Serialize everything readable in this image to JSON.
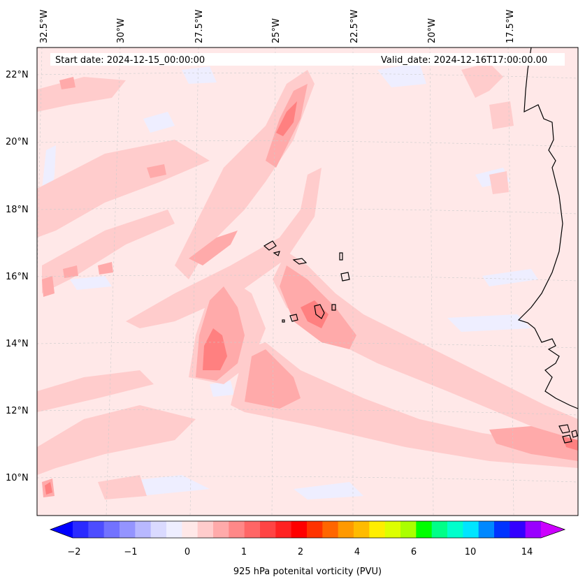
{
  "header": {
    "start_date": "Start date: 2024-12-15_00:00:00",
    "valid_date": "Valid_date: 2024-12-16T17:00:00.00"
  },
  "map": {
    "region": "Cape Verde / West Africa Atlantic",
    "gridlines": true,
    "longitude_labels": [
      "32.5°W",
      "30°W",
      "27.5°W",
      "25°W",
      "22.5°W",
      "20°W",
      "17.5°W"
    ],
    "latitude_labels": [
      "22°N",
      "20°N",
      "18°N",
      "16°N",
      "14°N",
      "12°N",
      "10°N"
    ],
    "field": "925 hPa potential vorticity",
    "colors": {
      "background_field": "#ffe8e8",
      "light_red": "#ffcccc",
      "mid_red": "#ffaaaa",
      "strong_red": "#ff8080",
      "light_blue": "#eeeeff",
      "coastline": "#000000"
    }
  },
  "colorbar": {
    "label": "925 hPa potenital vorticity (PVU)",
    "tick_labels": [
      "−2",
      "−1",
      "0",
      "1",
      "2",
      "4",
      "6",
      "10",
      "14"
    ],
    "colors": [
      "#0000ff",
      "#2a2aff",
      "#4d4dff",
      "#7272ff",
      "#9494ff",
      "#b8b8ff",
      "#dadaff",
      "#eeeeff",
      "#ffe8e8",
      "#ffcccc",
      "#ffaaaa",
      "#ff8888",
      "#ff6666",
      "#ff4444",
      "#ff2222",
      "#ff0000",
      "#ff3300",
      "#ff6600",
      "#ff9900",
      "#ffbb00",
      "#ffee00",
      "#ddff00",
      "#aaff00",
      "#00ff00",
      "#00ff88",
      "#00ffcc",
      "#00e5ff",
      "#0088ff",
      "#0033ff",
      "#3300ff",
      "#9900ff",
      "#cc00ff"
    ]
  }
}
